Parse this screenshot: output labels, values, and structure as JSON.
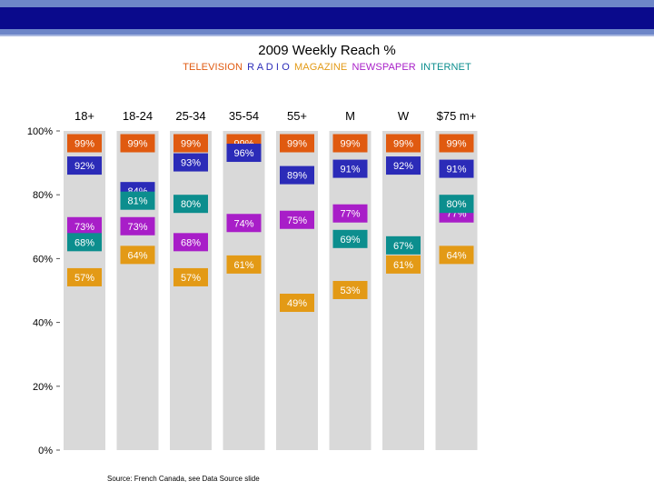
{
  "chart_data": {
    "type": "bar",
    "title": "2009 Weekly Reach %",
    "subtitle": "",
    "xlabel": "",
    "ylabel": "",
    "ylim": [
      0,
      100
    ],
    "yticks": [
      0,
      20,
      40,
      60,
      80,
      100
    ],
    "ytick_labels": [
      "0%",
      "20%",
      "40%",
      "60%",
      "80%",
      "100%"
    ],
    "categories": [
      "18+",
      "18-24",
      "25-34",
      "35-54",
      "55+",
      "M",
      "W",
      "$75 m+"
    ],
    "series": [
      {
        "name": "TELEVISION",
        "color": "#e05a10",
        "values": [
          99,
          99,
          99,
          99,
          99,
          99,
          99,
          99
        ]
      },
      {
        "name": "R A D I O",
        "color": "#2b2bb8",
        "values": [
          92,
          84,
          93,
          96,
          89,
          91,
          92,
          91
        ]
      },
      {
        "name": "MAGAZINE",
        "color": "#e39a16",
        "values": [
          57,
          64,
          57,
          61,
          49,
          53,
          61,
          64
        ]
      },
      {
        "name": "NEWSPAPER",
        "color": "#a81ec8",
        "values": [
          73,
          73,
          68,
          74,
          75,
          77,
          null,
          77
        ]
      },
      {
        "name": "INTERNET",
        "color": "#0c8e8e",
        "values": [
          68,
          81,
          80,
          null,
          null,
          69,
          67,
          80
        ]
      }
    ],
    "data_labels": [
      [
        "99%",
        "92%",
        "73%",
        "68%",
        "57%"
      ],
      [
        "99%",
        "84%",
        "81%",
        "73%",
        "64%"
      ],
      [
        "99%",
        "93%",
        "80%",
        "68%",
        "57%"
      ],
      [
        "99%",
        "96%",
        "74%",
        "61%"
      ],
      [
        "99%",
        "89%",
        "75%",
        "49%"
      ],
      [
        "99%",
        "91%",
        "77%",
        "69%",
        "53%"
      ],
      [
        "99%",
        "92%",
        "67%",
        "61%"
      ],
      [
        "99%",
        "91%",
        "80%",
        "77%",
        "64%"
      ]
    ],
    "legend": [
      "TELEVISION",
      "R A D I O",
      "MAGAZINE",
      "NEWSPAPER",
      "INTERNET"
    ],
    "legend_position": "top-center",
    "grid": false
  },
  "source_note": "Source: French Canada, see Data Source slide"
}
